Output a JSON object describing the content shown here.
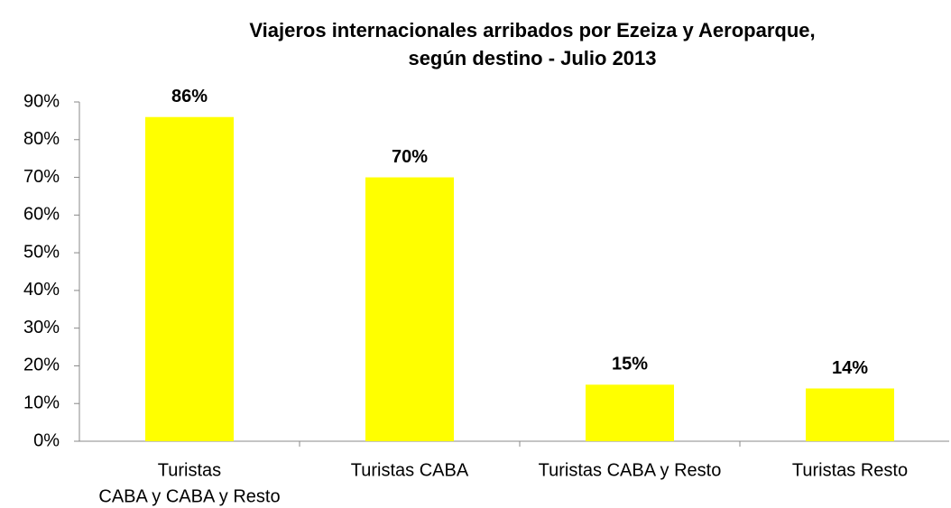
{
  "chart_data": {
    "type": "bar",
    "title": [
      "Viajeros internacionales arribados por Ezeiza y Aeroparque,",
      "según destino - Julio 2013"
    ],
    "categories": [
      [
        "Turistas",
        "CABA y CABA y Resto"
      ],
      "Turistas CABA",
      "Turistas CABA y Resto",
      "Turistas Resto"
    ],
    "values": [
      86,
      70,
      15,
      14
    ],
    "value_labels": [
      "86%",
      "70%",
      "15%",
      "14%"
    ],
    "color": "#ffff00",
    "ylim": [
      0,
      90
    ],
    "yticks": [
      {
        "value": 0,
        "label": "0%"
      },
      {
        "value": 10,
        "label": "10%"
      },
      {
        "value": 20,
        "label": "20%"
      },
      {
        "value": 30,
        "label": "30%"
      },
      {
        "value": 40,
        "label": "40%"
      },
      {
        "value": 50,
        "label": "50%"
      },
      {
        "value": 60,
        "label": "60%"
      },
      {
        "value": 70,
        "label": "70%"
      },
      {
        "value": 80,
        "label": "80%"
      },
      {
        "value": 90,
        "label": "90%"
      }
    ]
  }
}
